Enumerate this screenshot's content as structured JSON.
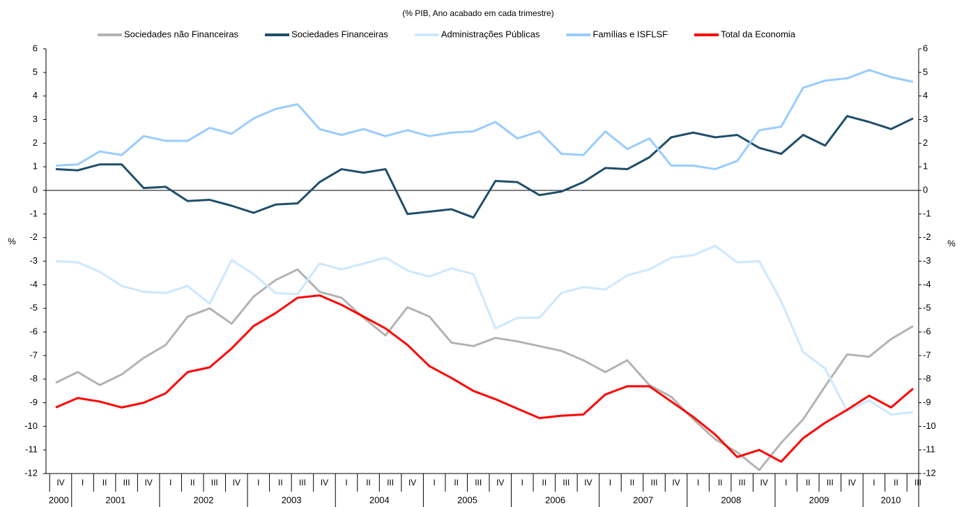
{
  "chart_data": {
    "type": "line",
    "title": "(% PIB, Ano acabado em cada trimestre)",
    "y_label": "%",
    "y2_label": "%",
    "categories": [
      "IV",
      "I",
      "II",
      "III",
      "IV",
      "I",
      "II",
      "III",
      "IV",
      "I",
      "II",
      "III",
      "IV",
      "I",
      "II",
      "III",
      "IV",
      "I",
      "II",
      "III",
      "IV",
      "I",
      "II",
      "III",
      "IV",
      "I",
      "II",
      "III",
      "IV",
      "I",
      "II",
      "III",
      "IV",
      "I",
      "II",
      "III",
      "IV",
      "I",
      "II",
      "III"
    ],
    "years": [
      "2000",
      "2001",
      "2002",
      "2003",
      "2004",
      "2005",
      "2006",
      "2007",
      "2008",
      "2009",
      "2010"
    ],
    "ylim": [
      -12,
      6
    ],
    "yticks": [
      -12,
      -11,
      -10,
      -9,
      -8,
      -7,
      -6,
      -5,
      -4,
      -3,
      -2,
      -1,
      0,
      1,
      2,
      3,
      4,
      5,
      6
    ],
    "y2lim": [
      -12,
      6
    ],
    "y2ticks": [
      -12,
      -11,
      -10,
      -9,
      -8,
      -7,
      -6,
      -5,
      -4,
      -3,
      -2,
      -1,
      0,
      1,
      2,
      3,
      4,
      5,
      6
    ],
    "series": [
      {
        "name": "Sociedades não Financeiras",
        "color": "#b3b3b3",
        "values": [
          -8.15,
          -7.7,
          -8.25,
          -7.8,
          -7.1,
          -6.55,
          -5.35,
          -5.0,
          -5.65,
          -4.5,
          -3.8,
          -3.35,
          -4.3,
          -4.55,
          -5.4,
          -6.15,
          -4.95,
          -5.35,
          -6.45,
          -6.6,
          -6.25,
          -6.4,
          -6.6,
          -6.8,
          -7.2,
          -7.7,
          -7.2,
          -8.25,
          -8.75,
          -9.7,
          -10.55,
          -11.1,
          -11.85,
          -10.7,
          -9.7,
          -8.3,
          -6.95,
          -7.05,
          -6.3,
          -5.75
        ]
      },
      {
        "name": "Sociedades Financeiras",
        "color": "#1f4e6b",
        "values": [
          0.9,
          0.85,
          1.1,
          1.1,
          0.1,
          0.15,
          -0.45,
          -0.4,
          -0.65,
          -0.95,
          -0.6,
          -0.55,
          0.35,
          0.9,
          0.75,
          0.9,
          -1.0,
          -0.9,
          -0.8,
          -1.15,
          0.4,
          0.35,
          -0.2,
          -0.05,
          0.35,
          0.95,
          0.9,
          1.4,
          2.25,
          2.45,
          2.25,
          2.35,
          1.8,
          1.55,
          2.35,
          1.9,
          3.15,
          2.9,
          2.6,
          3.05
        ]
      },
      {
        "name": "Administrações Públicas",
        "color": "#cce8ff",
        "values": [
          -3.0,
          -3.05,
          -3.45,
          -4.05,
          -4.3,
          -4.35,
          -4.05,
          -4.8,
          -2.95,
          -3.55,
          -4.35,
          -4.4,
          -3.1,
          -3.35,
          -3.1,
          -2.85,
          -3.4,
          -3.65,
          -3.3,
          -3.55,
          -5.85,
          -5.4,
          -5.4,
          -4.35,
          -4.1,
          -4.2,
          -3.6,
          -3.35,
          -2.85,
          -2.75,
          -2.35,
          -3.05,
          -3.0,
          -4.7,
          -6.85,
          -7.55,
          -9.35,
          -8.9,
          -9.5,
          -9.4
        ]
      },
      {
        "name": "Famílias e ISFLSF",
        "color": "#99ccff",
        "values": [
          1.05,
          1.1,
          1.65,
          1.5,
          2.3,
          2.1,
          2.1,
          2.65,
          2.4,
          3.05,
          3.45,
          3.65,
          2.6,
          2.35,
          2.6,
          2.3,
          2.55,
          2.3,
          2.45,
          2.5,
          2.9,
          2.2,
          2.5,
          1.55,
          1.5,
          2.5,
          1.75,
          2.2,
          1.05,
          1.05,
          0.9,
          1.25,
          2.55,
          2.7,
          4.35,
          4.65,
          4.75,
          5.1,
          4.8,
          4.6
        ]
      },
      {
        "name": "Total da Economia",
        "color": "#ff0000",
        "values": [
          -9.2,
          -8.8,
          -8.95,
          -9.2,
          -9.0,
          -8.6,
          -7.7,
          -7.5,
          -6.7,
          -5.75,
          -5.2,
          -4.55,
          -4.45,
          -4.85,
          -5.35,
          -5.85,
          -6.55,
          -7.45,
          -7.95,
          -8.5,
          -8.85,
          -9.25,
          -9.65,
          -9.55,
          -9.5,
          -8.65,
          -8.3,
          -8.3,
          -8.95,
          -9.6,
          -10.35,
          -11.3,
          -11.0,
          -11.5,
          -10.5,
          -9.85,
          -9.3,
          -8.7,
          -9.2,
          -8.4
        ]
      }
    ]
  }
}
